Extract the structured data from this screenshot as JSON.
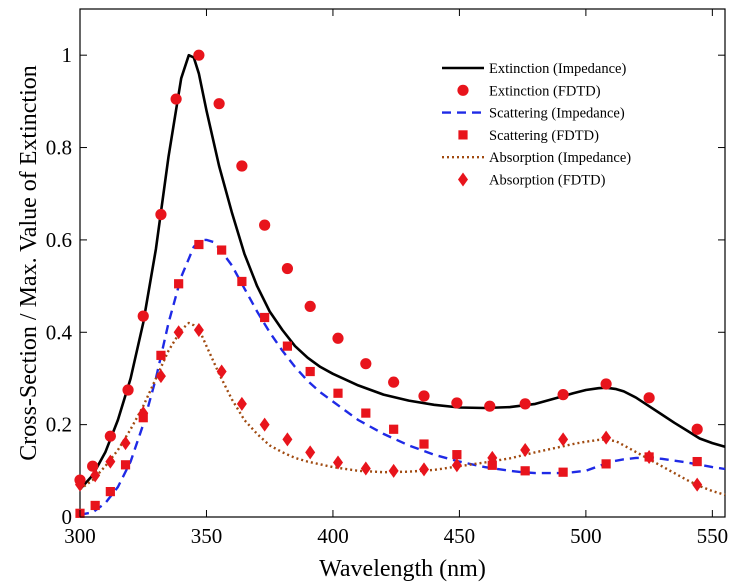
{
  "chart_data": {
    "type": "line",
    "title": "",
    "xlabel": "Wavelength (nm)",
    "ylabel": "Cross-Section / Max. Value of Extinction",
    "xlim": [
      300,
      555
    ],
    "ylim": [
      0,
      1.1
    ],
    "xticks": [
      300,
      350,
      400,
      450,
      500,
      550
    ],
    "yticks": [
      0,
      0.2,
      0.4,
      0.6,
      0.8,
      1
    ],
    "xtick_labels": [
      "300",
      "350",
      "400",
      "450",
      "500",
      "550"
    ],
    "ytick_labels": [
      "0",
      "0.2",
      "0.4",
      "0.6",
      "0.8",
      "1"
    ],
    "grid": false,
    "legend_position": "top-right",
    "series": [
      {
        "name": "Extinction (Impedance)",
        "kind": "line",
        "style": "solid",
        "color": "#000000",
        "x": [
          300,
          305,
          310,
          315,
          320,
          325,
          330,
          335,
          340,
          343,
          345,
          347,
          350,
          355,
          360,
          365,
          370,
          375,
          380,
          385,
          390,
          395,
          400,
          410,
          420,
          430,
          440,
          450,
          460,
          470,
          480,
          490,
          495,
          500,
          505,
          508,
          512,
          515,
          520,
          525,
          530,
          535,
          540,
          545,
          550,
          555
        ],
        "y": [
          0.06,
          0.09,
          0.14,
          0.21,
          0.3,
          0.42,
          0.58,
          0.78,
          0.95,
          1.0,
          0.995,
          0.96,
          0.88,
          0.76,
          0.66,
          0.57,
          0.5,
          0.445,
          0.405,
          0.37,
          0.345,
          0.325,
          0.31,
          0.285,
          0.265,
          0.252,
          0.243,
          0.237,
          0.236,
          0.238,
          0.245,
          0.26,
          0.268,
          0.275,
          0.279,
          0.28,
          0.277,
          0.272,
          0.258,
          0.24,
          0.222,
          0.204,
          0.187,
          0.17,
          0.16,
          0.152
        ]
      },
      {
        "name": "Extinction (FDTD)",
        "kind": "markers",
        "marker": "circle",
        "color": "#e8141c",
        "x": [
          300,
          305,
          312,
          319,
          325,
          332,
          338,
          347,
          355,
          364,
          373,
          382,
          391,
          402,
          413,
          424,
          436,
          449,
          462,
          476,
          491,
          508,
          525,
          544
        ],
        "y": [
          0.08,
          0.11,
          0.175,
          0.275,
          0.435,
          0.655,
          0.905,
          1.0,
          0.895,
          0.76,
          0.632,
          0.538,
          0.456,
          0.387,
          0.332,
          0.292,
          0.262,
          0.247,
          0.24,
          0.245,
          0.265,
          0.288,
          0.258,
          0.19
        ]
      },
      {
        "name": "Scattering (Impedance)",
        "kind": "line",
        "style": "dashed",
        "color": "#1f2ae6",
        "x": [
          300,
          305,
          310,
          315,
          320,
          325,
          330,
          335,
          340,
          345,
          348,
          350,
          353,
          356,
          360,
          365,
          370,
          375,
          380,
          385,
          390,
          395,
          400,
          410,
          420,
          430,
          440,
          450,
          460,
          470,
          475,
          480,
          490,
          495,
          500,
          505,
          510,
          515,
          520,
          525,
          530,
          535,
          540,
          545,
          550,
          555
        ],
        "y": [
          0.005,
          0.01,
          0.03,
          0.065,
          0.12,
          0.2,
          0.3,
          0.42,
          0.52,
          0.585,
          0.6,
          0.6,
          0.595,
          0.575,
          0.545,
          0.495,
          0.445,
          0.4,
          0.36,
          0.325,
          0.295,
          0.27,
          0.25,
          0.21,
          0.18,
          0.155,
          0.135,
          0.12,
          0.108,
          0.1,
          0.097,
          0.095,
          0.095,
          0.097,
          0.1,
          0.11,
          0.12,
          0.125,
          0.128,
          0.128,
          0.126,
          0.122,
          0.118,
          0.113,
          0.108,
          0.104
        ]
      },
      {
        "name": "Scattering (FDTD)",
        "kind": "markers",
        "marker": "square",
        "color": "#e8141c",
        "x": [
          300,
          306,
          312,
          318,
          325,
          332,
          339,
          347,
          356,
          364,
          373,
          382,
          391,
          402,
          413,
          424,
          436,
          449,
          463,
          476,
          491,
          508,
          525,
          544
        ],
        "y": [
          0.008,
          0.025,
          0.055,
          0.113,
          0.215,
          0.35,
          0.505,
          0.59,
          0.578,
          0.51,
          0.432,
          0.37,
          0.315,
          0.268,
          0.225,
          0.19,
          0.158,
          0.135,
          0.112,
          0.1,
          0.097,
          0.115,
          0.13,
          0.12
        ]
      },
      {
        "name": "Absorption (Impedance)",
        "kind": "line",
        "style": "dotted",
        "color": "#a04a10",
        "x": [
          300,
          305,
          310,
          315,
          320,
          325,
          330,
          335,
          340,
          343,
          345,
          348,
          350,
          355,
          360,
          365,
          370,
          375,
          380,
          385,
          390,
          400,
          410,
          420,
          430,
          440,
          450,
          460,
          470,
          480,
          490,
          495,
          500,
          505,
          508,
          512,
          515,
          520,
          525,
          530,
          535,
          540,
          545,
          550,
          555
        ],
        "y": [
          0.06,
          0.08,
          0.11,
          0.145,
          0.19,
          0.24,
          0.3,
          0.36,
          0.405,
          0.42,
          0.415,
          0.395,
          0.37,
          0.31,
          0.255,
          0.21,
          0.18,
          0.155,
          0.14,
          0.128,
          0.12,
          0.108,
          0.1,
          0.097,
          0.098,
          0.102,
          0.11,
          0.118,
          0.127,
          0.14,
          0.152,
          0.158,
          0.163,
          0.167,
          0.168,
          0.164,
          0.155,
          0.14,
          0.125,
          0.11,
          0.095,
          0.08,
          0.067,
          0.056,
          0.048
        ]
      },
      {
        "name": "Absorption (FDTD)",
        "kind": "markers",
        "marker": "diamond",
        "color": "#e8141c",
        "x": [
          300,
          306,
          312,
          318,
          325,
          332,
          339,
          347,
          356,
          364,
          373,
          382,
          391,
          402,
          413,
          424,
          436,
          449,
          463,
          476,
          491,
          508,
          525,
          544
        ],
        "y": [
          0.07,
          0.09,
          0.12,
          0.16,
          0.225,
          0.305,
          0.4,
          0.405,
          0.315,
          0.245,
          0.2,
          0.168,
          0.14,
          0.118,
          0.105,
          0.1,
          0.103,
          0.112,
          0.128,
          0.145,
          0.168,
          0.172,
          0.13,
          0.07
        ]
      }
    ]
  }
}
